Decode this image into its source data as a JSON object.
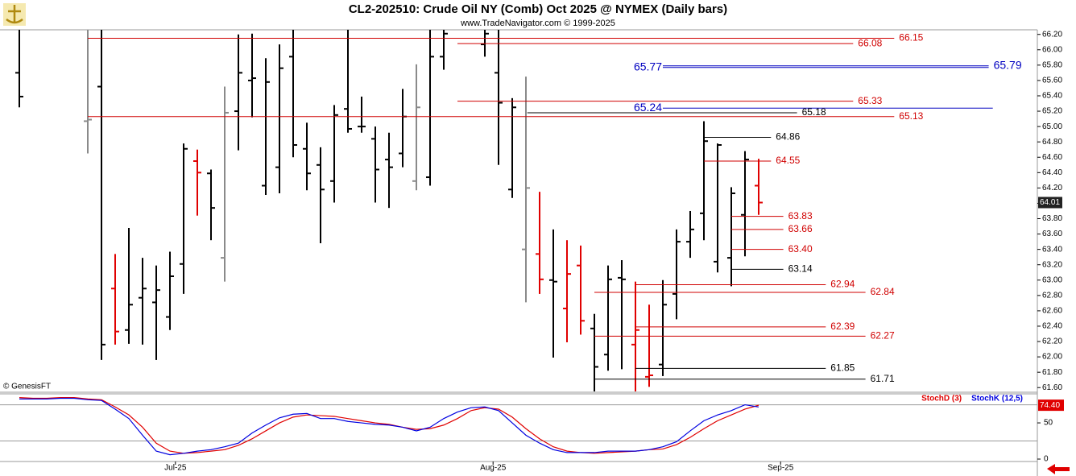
{
  "chart_data": {
    "type": "ohlc",
    "title": "CL2-202510:  Crude Oil NY (Comb) Oct 2025 @ NYMEX  (Daily bars)",
    "subtitle": "www.TradeNavigator.com © 1999-2025",
    "watermark": "© GenesisFT",
    "x": [
      0,
      1,
      2,
      3,
      4,
      5,
      6,
      7,
      8,
      9,
      10,
      11,
      12,
      13,
      14,
      15,
      16,
      17,
      18,
      19,
      20,
      21,
      22,
      23,
      24,
      25,
      26,
      27,
      28,
      29,
      30,
      31,
      32,
      33,
      34,
      35,
      36,
      37,
      38,
      39,
      40,
      41,
      42,
      43,
      44,
      45,
      46,
      47,
      48,
      49,
      50,
      51,
      52,
      53,
      54
    ],
    "open": [
      65.7,
      null,
      null,
      null,
      null,
      65.07,
      65.52,
      62.89,
      62.35,
      62.77,
      62.71,
      62.52,
      63.21,
      64.55,
      64.39,
      63.29,
      65.2,
      65.6,
      64.23,
      64.47,
      65.91,
      64.71,
      64.5,
      64.29,
      65.23,
      65.0,
      64.84,
      64.57,
      64.65,
      64.29,
      64.34,
      65.91,
      null,
      null,
      66.07,
      65.7,
      64.18,
      63.4,
      63.34,
      63.0,
      62.63,
      63.19,
      62.37,
      62.03,
      63.03,
      62.16,
      61.74,
      61.9,
      62.82,
      63.5,
      63.87,
      63.24,
      63.29,
      63.85,
      64.23
    ],
    "high": [
      66.3,
      null,
      null,
      null,
      null,
      66.3,
      66.3,
      63.34,
      63.68,
      63.29,
      63.19,
      63.37,
      64.78,
      64.7,
      64.44,
      65.52,
      66.2,
      66.21,
      65.89,
      66.07,
      66.3,
      65.05,
      64.73,
      65.28,
      66.3,
      65.39,
      65.0,
      64.92,
      65.49,
      65.81,
      66.3,
      66.3,
      null,
      null,
      66.3,
      66.3,
      65.37,
      65.65,
      64.15,
      63.66,
      63.52,
      63.45,
      62.56,
      63.19,
      63.26,
      62.98,
      62.68,
      63.0,
      63.66,
      63.9,
      65.07,
      64.78,
      64.21,
      64.68,
      64.58
    ],
    "low": [
      65.25,
      null,
      null,
      null,
      null,
      64.65,
      61.96,
      62.16,
      62.17,
      62.16,
      61.96,
      62.35,
      62.82,
      63.84,
      63.52,
      62.98,
      64.69,
      65.12,
      64.11,
      64.13,
      64.6,
      64.17,
      63.48,
      64.01,
      64.92,
      64.92,
      64.01,
      63.94,
      64.47,
      64.17,
      64.23,
      65.74,
      null,
      null,
      65.91,
      64.5,
      64.07,
      62.71,
      62.82,
      61.99,
      62.19,
      62.29,
      61.55,
      61.82,
      61.84,
      61.55,
      61.61,
      61.75,
      62.49,
      63.29,
      63.52,
      63.1,
      62.92,
      63.31,
      63.85
    ],
    "close": [
      65.39,
      null,
      null,
      null,
      null,
      65.09,
      62.16,
      62.33,
      62.68,
      62.89,
      62.87,
      63.05,
      64.71,
      64.4,
      63.94,
      65.18,
      65.7,
      65.63,
      65.58,
      65.76,
      64.76,
      64.39,
      64.18,
      65.15,
      64.97,
      65.0,
      64.44,
      64.47,
      65.13,
      65.25,
      65.91,
      66.21,
      null,
      null,
      66.21,
      65.31,
      65.25,
      64.2,
      63.01,
      62.98,
      63.08,
      62.47,
      61.87,
      63.01,
      63.01,
      62.35,
      61.76,
      62.68,
      63.5,
      63.66,
      64.81,
      64.76,
      64.13,
      64.57,
      64.01
    ],
    "colors": [
      "#000000",
      null,
      null,
      null,
      null,
      "#8a8a8a",
      "#000000",
      "#e00000",
      "#000000",
      "#000000",
      "#000000",
      "#000000",
      "#000000",
      "#e00000",
      "#000000",
      "#8a8a8a",
      "#000000",
      "#000000",
      "#000000",
      "#000000",
      "#000000",
      "#000000",
      "#000000",
      "#000000",
      "#000000",
      "#000000",
      "#000000",
      "#000000",
      "#000000",
      "#8a8a8a",
      "#000000",
      "#000000",
      null,
      null,
      "#000000",
      "#000000",
      "#000000",
      "#8a8a8a",
      "#e00000",
      "#000000",
      "#e00000",
      "#e00000",
      "#000000",
      "#000000",
      "#000000",
      "#e00000",
      "#e00000",
      "#000000",
      "#000000",
      "#000000",
      "#000000",
      "#000000",
      "#000000",
      "#000000",
      "#e00000"
    ],
    "xlim": [
      -1,
      74
    ],
    "xticks": [
      {
        "value": 11.4,
        "label": "Jul-25"
      },
      {
        "value": 34.6,
        "label": "Aug-25"
      },
      {
        "value": 55.6,
        "label": "Sep-25"
      }
    ],
    "ylim": [
      61.55,
      66.26
    ],
    "yticks": [
      {
        "value": 61.6,
        "label": "61.60"
      },
      {
        "value": 61.8,
        "label": "61.80"
      },
      {
        "value": 62,
        "label": "62.00"
      },
      {
        "value": 62.2,
        "label": "62.20"
      },
      {
        "value": 62.4,
        "label": "62.40"
      },
      {
        "value": 62.6,
        "label": "62.60"
      },
      {
        "value": 62.8,
        "label": "62.80"
      },
      {
        "value": 63,
        "label": "63.00"
      },
      {
        "value": 63.2,
        "label": "63.20"
      },
      {
        "value": 63.4,
        "label": "63.40"
      },
      {
        "value": 63.6,
        "label": "63.60"
      },
      {
        "value": 63.8,
        "label": "63.80"
      },
      {
        "value": 64,
        "label": "64.00"
      },
      {
        "value": 64.2,
        "label": "64.20"
      },
      {
        "value": 64.4,
        "label": "64.40"
      },
      {
        "value": 64.6,
        "label": "64.60"
      },
      {
        "value": 64.8,
        "label": "64.80"
      },
      {
        "value": 65,
        "label": "65.00"
      },
      {
        "value": 65.2,
        "label": "65.20"
      },
      {
        "value": 65.4,
        "label": "65.40"
      },
      {
        "value": 65.6,
        "label": "65.60"
      },
      {
        "value": 65.8,
        "label": "65.80"
      },
      {
        "value": 66,
        "label": "66.00"
      },
      {
        "value": 66.2,
        "label": "66.20"
      }
    ],
    "levels": [
      {
        "value": 66.15,
        "color": "#d00000",
        "start": 5,
        "end": 63.9
      },
      {
        "value": 66.08,
        "color": "#d00000",
        "start": 32,
        "end": 60.9
      },
      {
        "value": 65.79,
        "color": "#0000c0",
        "start": 47,
        "end": 70.8
      },
      {
        "value": 65.77,
        "color": "#0000c0",
        "start": 47,
        "end": 70.8,
        "label_side": "left"
      },
      {
        "value": 65.33,
        "color": "#d00000",
        "start": 32,
        "end": 60.9
      },
      {
        "value": 65.24,
        "color": "#0000c0",
        "start": 47,
        "end": 71.1,
        "label_side": "left"
      },
      {
        "value": 65.18,
        "color": "#000000",
        "start": 37.1,
        "end": 56.8
      },
      {
        "value": 65.13,
        "color": "#d00000",
        "start": 5,
        "end": 63.9
      },
      {
        "value": 64.86,
        "color": "#000000",
        "start": 50,
        "end": 54.9
      },
      {
        "value": 64.55,
        "color": "#d00000",
        "start": 50,
        "end": 54.9
      },
      {
        "value": 63.83,
        "color": "#d00000",
        "start": 52,
        "end": 55.8
      },
      {
        "value": 63.66,
        "color": "#d00000",
        "start": 52,
        "end": 55.8
      },
      {
        "value": 63.4,
        "label": "63.40",
        "color": "#d00000",
        "start": 52,
        "end": 55.8
      },
      {
        "value": 63.14,
        "color": "#000000",
        "start": 52,
        "end": 55.8
      },
      {
        "value": 62.94,
        "color": "#d00000",
        "start": 45,
        "end": 58.9
      },
      {
        "value": 62.84,
        "color": "#d00000",
        "start": 42,
        "end": 61.8
      },
      {
        "value": 62.39,
        "color": "#d00000",
        "start": 45,
        "end": 58.9
      },
      {
        "value": 62.27,
        "color": "#d00000",
        "start": 42,
        "end": 61.8
      },
      {
        "value": 61.85,
        "color": "#000000",
        "start": 45,
        "end": 58.9
      },
      {
        "value": 61.71,
        "color": "#000000",
        "start": 42,
        "end": 61.8
      }
    ],
    "indicator": {
      "type": "line",
      "ylim": [
        0,
        89
      ],
      "yticks": [
        0,
        50
      ],
      "ref_lines": [
        75,
        25
      ],
      "series": [
        {
          "name": "StochD (3)",
          "color": "#e00000",
          "last_label": "74.40",
          "values": [
            85,
            84,
            84,
            85,
            85,
            83,
            82,
            72,
            61,
            44,
            22,
            11,
            8,
            9,
            11,
            13,
            19,
            28,
            39,
            50,
            58,
            61,
            60,
            59,
            56,
            53,
            50,
            48,
            44,
            41,
            42,
            47,
            56,
            67,
            71,
            69,
            58,
            42,
            28,
            17,
            11,
            9,
            8,
            9,
            10,
            11,
            13,
            14,
            20,
            30,
            42,
            53,
            61,
            69,
            74.4
          ]
        },
        {
          "name": "StochK (12,5)",
          "color": "#0000e0",
          "values": [
            83,
            83,
            83,
            84,
            84,
            82,
            81,
            69,
            56,
            33,
            11,
            6,
            8,
            11,
            13,
            17,
            22,
            36,
            47,
            57,
            62,
            63,
            56,
            56,
            52,
            50,
            48,
            47,
            44,
            39,
            44,
            56,
            65,
            71,
            72,
            67,
            50,
            33,
            22,
            13,
            9,
            9,
            9,
            11,
            11,
            11,
            13,
            17,
            24,
            39,
            53,
            61,
            67,
            75,
            72
          ]
        }
      ]
    }
  }
}
